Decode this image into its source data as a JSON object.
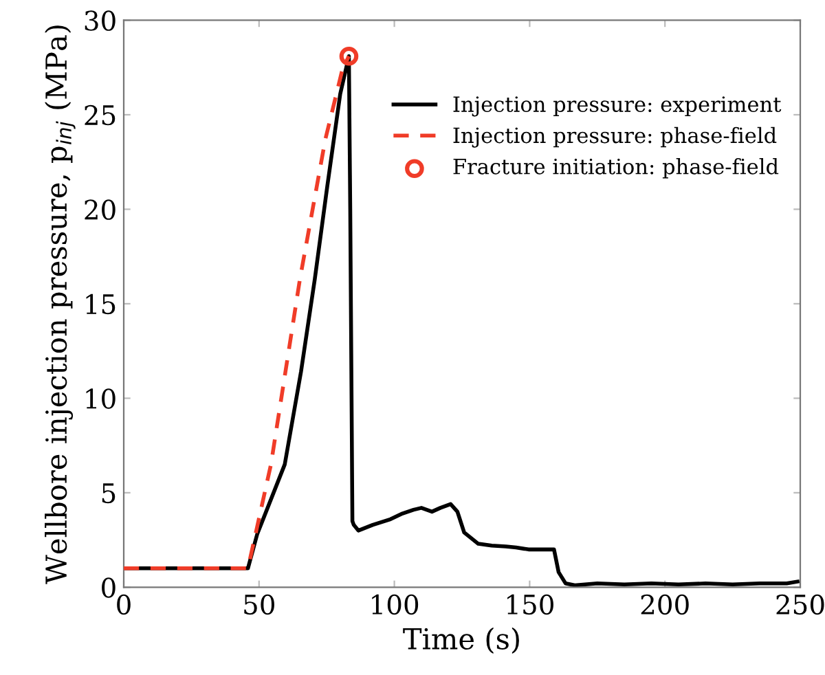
{
  "chart_data": {
    "type": "line",
    "xlabel": "Time (s)",
    "ylabel": "Wellbore injection pressure, p$_{inj}$ (MPa)",
    "xlim": [
      0,
      250
    ],
    "ylim": [
      0,
      30
    ],
    "xticks": [
      0,
      50,
      100,
      150,
      200,
      250
    ],
    "yticks": [
      0,
      5,
      10,
      15,
      20,
      25,
      30
    ],
    "grid": false,
    "legend": "upper right",
    "series": [
      {
        "name": "Injection pressure: experiment",
        "color": "#000000",
        "line_style": "solid",
        "marker": "none",
        "x": [
          0,
          45.9,
          49.3,
          59.5,
          65.5,
          70.6,
          75.2,
          80.0,
          83.2,
          83.7,
          84.5,
          85.0,
          86.7,
          92,
          98.6,
          103,
          107.1,
          110,
          113.9,
          117,
          120.8,
          123.3,
          125.8,
          131.0,
          136,
          141.2,
          145,
          149.6,
          155,
          159.0,
          160.7,
          163.3,
          166.7,
          175,
          185,
          195,
          205,
          215,
          225,
          235,
          245,
          249
        ],
        "values": [
          1.0,
          1.0,
          2.8,
          6.5,
          11.4,
          16.3,
          21.2,
          26.1,
          28.1,
          20,
          3.5,
          3.3,
          3.0,
          3.3,
          3.6,
          3.9,
          4.1,
          4.2,
          4.0,
          4.2,
          4.4,
          4.0,
          2.9,
          2.3,
          2.2,
          2.16,
          2.1,
          2.0,
          2.0,
          2.0,
          0.8,
          0.2,
          0.1,
          0.2,
          0.15,
          0.2,
          0.15,
          0.2,
          0.15,
          0.2,
          0.2,
          0.3
        ]
      },
      {
        "name": "Injection pressure: phase-field",
        "color": "#f03c28",
        "line_style": "dashed",
        "marker": "none",
        "x": [
          0,
          45.9,
          54.4,
          65.1,
          74.5,
          80.8,
          83.2
        ],
        "values": [
          1.0,
          1.0,
          6.5,
          16.3,
          23.7,
          27.4,
          28.1
        ]
      },
      {
        "name": "Fracture initiation: phase-field",
        "type": "scatter",
        "color": "#f03c28",
        "marker": "circle",
        "x": [
          83.2
        ],
        "values": [
          28.1
        ]
      }
    ]
  }
}
